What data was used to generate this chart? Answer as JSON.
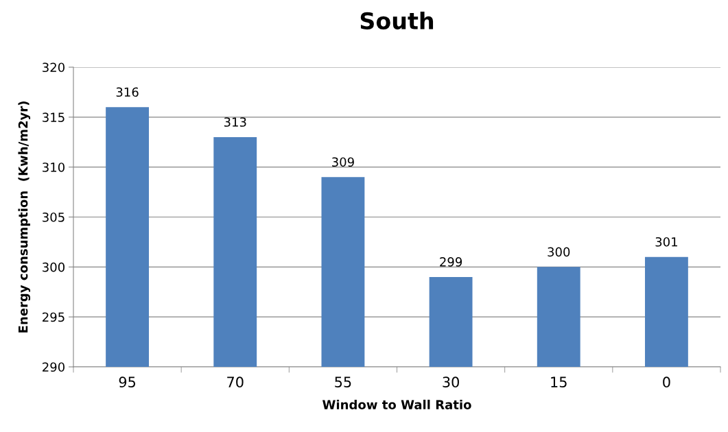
{
  "chart_data": {
    "type": "bar",
    "title": "South",
    "xlabel": "Window to Wall Ratio",
    "ylabel": "Energy consumption  (Kwh/m2yr)",
    "categories": [
      "95",
      "70",
      "55",
      "30",
      "15",
      "0"
    ],
    "values": [
      316,
      313,
      309,
      299,
      300,
      301
    ],
    "color": "#4f81bd",
    "ylim": [
      290,
      320
    ],
    "yticks": [
      290,
      295,
      300,
      305,
      310,
      315,
      320
    ],
    "grid": "y",
    "data_labels": true
  }
}
